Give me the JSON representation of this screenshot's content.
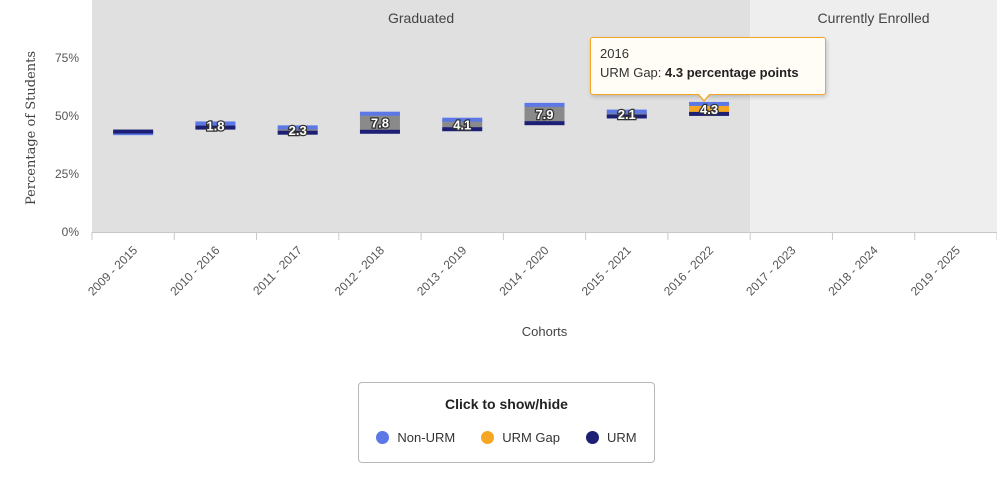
{
  "chart_data": {
    "type": "floating-bar",
    "regions": [
      {
        "label": "Graduated",
        "color": "#e0e0e0"
      },
      {
        "label": "Currently Enrolled",
        "color": "#eeeeee"
      }
    ],
    "categories": [
      "2009 - 2015",
      "2010 - 2016",
      "2011 - 2017",
      "2012 - 2018",
      "2013 - 2019",
      "2014 - 2020",
      "2015 - 2021",
      "2016 - 2022",
      "2017 - 2023",
      "2018 - 2024",
      "2019 - 2025"
    ],
    "graduated_count": 8,
    "series": [
      {
        "name": "Non-URM",
        "color": "#5b78e6",
        "values": [
          42.6,
          46.8,
          45.1,
          51.0,
          48.4,
          54.8,
          51.9,
          55.2,
          null,
          null,
          null
        ]
      },
      {
        "name": "URM",
        "color": "#1c1f73",
        "values": [
          43.3,
          45.0,
          42.8,
          43.2,
          44.3,
          46.9,
          49.8,
          50.9,
          null,
          null,
          null
        ]
      }
    ],
    "gaps": [
      null,
      1.8,
      2.3,
      7.8,
      4.1,
      7.9,
      2.1,
      4.3,
      null,
      null,
      null
    ],
    "gap_color_default": "#8a8a8a",
    "gap_color_highlight": "#f5a623",
    "highlighted_index": 7,
    "xlabel": "Cohorts",
    "ylabel": "Percentage of Students",
    "yticks": [
      "0%",
      "25%",
      "50%",
      "75%"
    ],
    "ytick_values": [
      0,
      25,
      50,
      75
    ],
    "ylim": [
      0,
      100
    ]
  },
  "tooltip": {
    "title": "2016",
    "label": "URM Gap: ",
    "value": "4.3 percentage points"
  },
  "legend": {
    "title": "Click to show/hide",
    "items": [
      {
        "label": "Non-URM",
        "color": "#5b78e6"
      },
      {
        "label": "URM Gap",
        "color": "#f5a623"
      },
      {
        "label": "URM",
        "color": "#1c1f73"
      }
    ]
  }
}
